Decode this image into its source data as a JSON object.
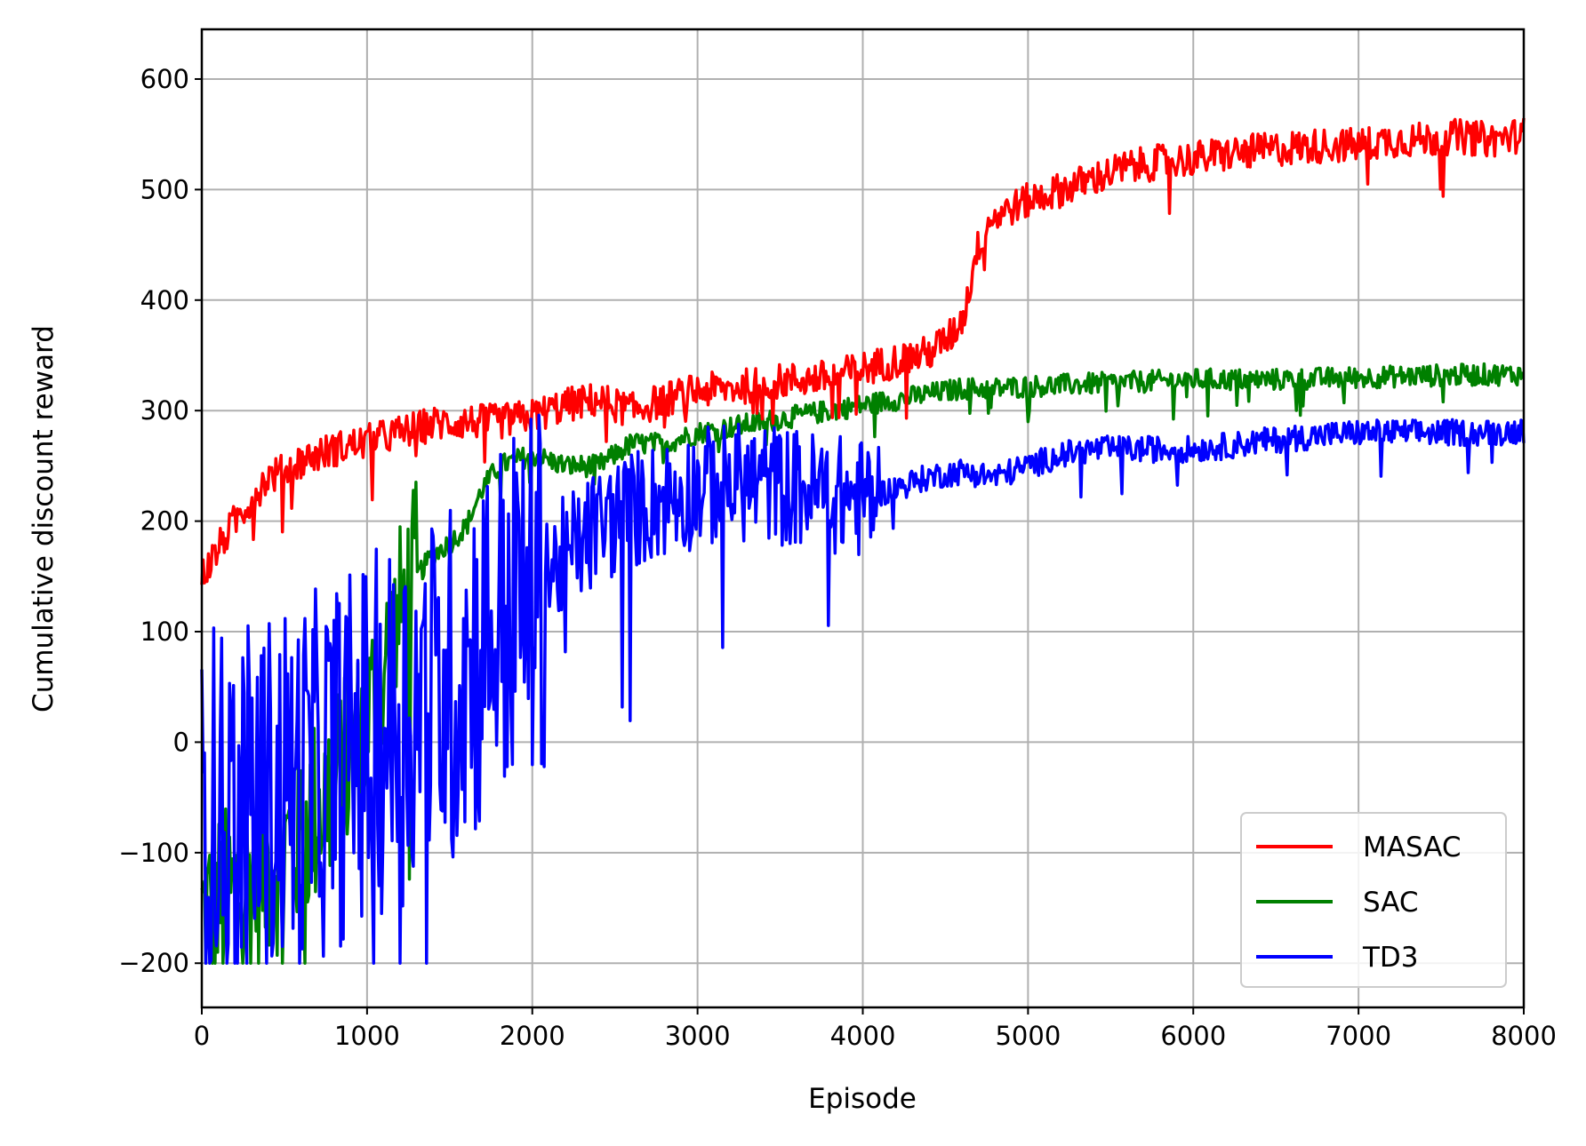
{
  "chart_data": {
    "type": "line",
    "title": "",
    "xlabel": "Episode",
    "ylabel": "Cumulative discount reward",
    "xlim": [
      0,
      8000
    ],
    "ylim": [
      -240,
      645
    ],
    "x_ticks": [
      0,
      1000,
      2000,
      3000,
      4000,
      5000,
      6000,
      7000,
      8000
    ],
    "x_tick_labels": [
      "0",
      "1000",
      "2000",
      "3000",
      "4000",
      "5000",
      "6000",
      "7000",
      "8000"
    ],
    "y_ticks": [
      -200,
      -100,
      0,
      100,
      200,
      300,
      400,
      500,
      600
    ],
    "y_tick_labels": [
      "−200",
      "−100",
      "0",
      "100",
      "200",
      "300",
      "400",
      "500",
      "600"
    ],
    "grid": true,
    "legend_position": "lower-right",
    "series": [
      {
        "name": "MASAC",
        "color": "#ff0000",
        "x": [
          0,
          100,
          200,
          300,
          400,
          500,
          600,
          800,
          1000,
          1200,
          1400,
          1600,
          1800,
          2000,
          2200,
          2400,
          2600,
          2800,
          3000,
          3200,
          3400,
          3600,
          3800,
          4000,
          4200,
          4400,
          4550,
          4620,
          4680,
          4750,
          4850,
          5000,
          5200,
          5400,
          5600,
          5800,
          6000,
          6200,
          6400,
          6600,
          6800,
          7000,
          7200,
          7400,
          7600,
          7800,
          8000
        ],
        "y": [
          150,
          175,
          200,
          220,
          240,
          245,
          255,
          265,
          272,
          280,
          288,
          290,
          290,
          295,
          305,
          310,
          300,
          310,
          318,
          320,
          325,
          328,
          330,
          338,
          345,
          352,
          370,
          390,
          440,
          470,
          480,
          490,
          500,
          510,
          520,
          525,
          528,
          532,
          535,
          538,
          540,
          540,
          545,
          545,
          548,
          545,
          550
        ],
        "noise": 16
      },
      {
        "name": "SAC",
        "color": "#008000",
        "x": [
          0,
          100,
          200,
          300,
          400,
          500,
          600,
          700,
          800,
          900,
          1000,
          1100,
          1200,
          1300,
          1400,
          1500,
          1600,
          1700,
          1800,
          2000,
          2200,
          2400,
          2600,
          2800,
          3000,
          3200,
          3400,
          3600,
          3800,
          4000,
          4200,
          4400,
          4600,
          4800,
          5000,
          5500,
          6000,
          6500,
          7000,
          7500,
          8000
        ],
        "y": [
          -160,
          -150,
          -140,
          -120,
          -110,
          -100,
          -80,
          -60,
          -40,
          -20,
          20,
          60,
          110,
          150,
          170,
          180,
          195,
          230,
          250,
          260,
          250,
          250,
          270,
          270,
          280,
          285,
          290,
          295,
          300,
          305,
          310,
          315,
          320,
          320,
          322,
          325,
          328,
          328,
          330,
          332,
          333
        ],
        "noise": 10
      },
      {
        "name": "TD3",
        "color": "#0000ff",
        "x": [
          0,
          100,
          200,
          300,
          400,
          500,
          600,
          700,
          800,
          900,
          1000,
          1100,
          1200,
          1300,
          1400,
          1500,
          1600,
          1700,
          1800,
          1900,
          2000,
          2100,
          2200,
          2400,
          2600,
          2800,
          3000,
          3200,
          3400,
          3600,
          3800,
          4000,
          4200,
          4400,
          4600,
          4800,
          5000,
          5200,
          5400,
          5600,
          5800,
          6000,
          6200,
          6400,
          6600,
          6800,
          7000,
          7200,
          7400,
          7600,
          7800,
          8000
        ],
        "y": [
          -50,
          -60,
          -70,
          -60,
          -50,
          -40,
          -40,
          -30,
          -20,
          -10,
          0,
          10,
          20,
          30,
          40,
          50,
          70,
          90,
          110,
          120,
          130,
          150,
          170,
          195,
          210,
          220,
          230,
          235,
          235,
          230,
          225,
          220,
          230,
          240,
          245,
          240,
          250,
          260,
          265,
          265,
          265,
          265,
          268,
          272,
          275,
          278,
          280,
          280,
          280,
          280,
          280,
          282
        ],
        "noise": 12
      }
    ]
  }
}
